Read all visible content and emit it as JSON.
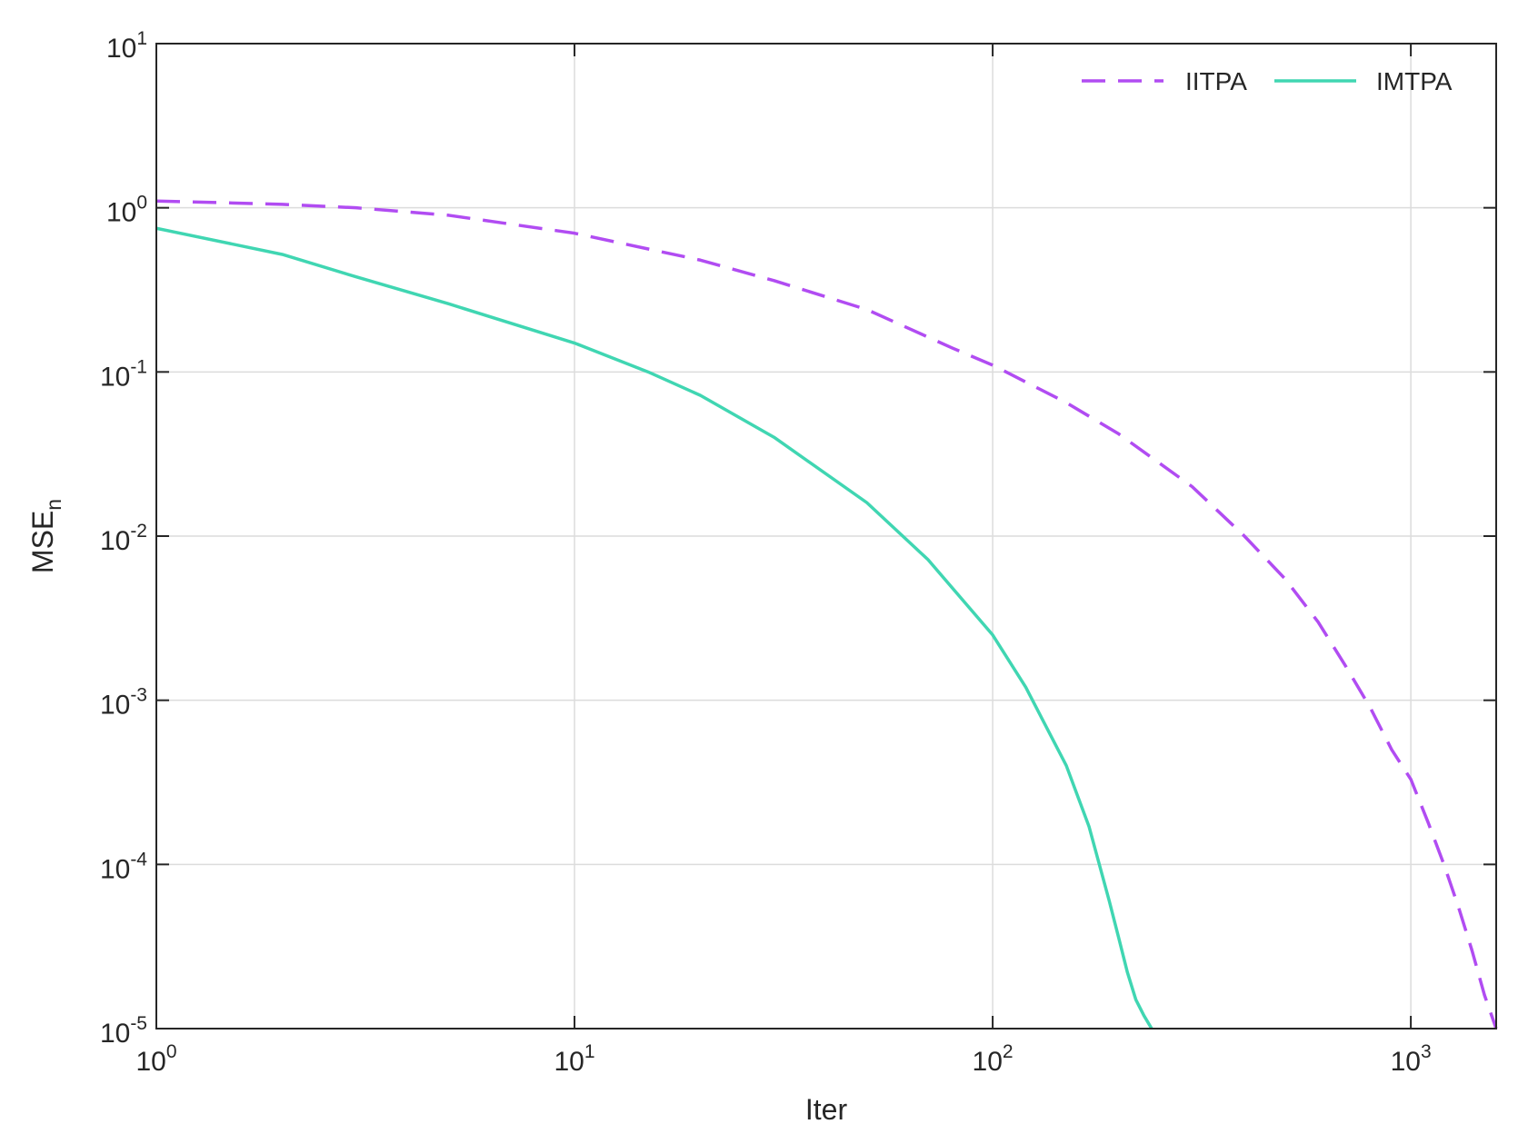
{
  "chart_data": {
    "type": "line",
    "xscale": "log",
    "yscale": "log",
    "xlim": [
      1,
      1600
    ],
    "ylim": [
      1e-05,
      10
    ],
    "xlabel": "Iter",
    "ylabel": "MSE",
    "ylabel_sub": "n",
    "grid": true,
    "legend_position": "top-right",
    "x_ticks": [
      {
        "value": 1,
        "base": "10",
        "exp": "0"
      },
      {
        "value": 10,
        "base": "10",
        "exp": "1"
      },
      {
        "value": 100,
        "base": "10",
        "exp": "2"
      },
      {
        "value": 1000,
        "base": "10",
        "exp": "3"
      }
    ],
    "y_ticks": [
      {
        "value": 10,
        "base": "10",
        "exp": "1"
      },
      {
        "value": 1,
        "base": "10",
        "exp": "0"
      },
      {
        "value": 0.1,
        "base": "10",
        "exp": "-1"
      },
      {
        "value": 0.01,
        "base": "10",
        "exp": "-2"
      },
      {
        "value": 0.001,
        "base": "10",
        "exp": "-3"
      },
      {
        "value": 0.0001,
        "base": "10",
        "exp": "-4"
      },
      {
        "value": 1e-05,
        "base": "10",
        "exp": "-5"
      }
    ],
    "series": [
      {
        "name": "IITPA",
        "color": "#b14cf2",
        "style": "dashed",
        "x": [
          1,
          2,
          3,
          5,
          10,
          20,
          30,
          50,
          80,
          100,
          150,
          200,
          300,
          400,
          500,
          600,
          700,
          800,
          900,
          1000,
          1100,
          1200,
          1300,
          1400,
          1500,
          1600
        ],
        "y": [
          1.1,
          1.05,
          1.0,
          0.9,
          0.7,
          0.48,
          0.36,
          0.24,
          0.14,
          0.11,
          0.065,
          0.042,
          0.02,
          0.01,
          0.0055,
          0.003,
          0.0016,
          0.0009,
          0.0005,
          0.00033,
          0.00018,
          0.0001,
          5.5e-05,
          3e-05,
          1.6e-05,
          1e-05
        ]
      },
      {
        "name": "IMTPA",
        "color": "#40d6b2",
        "style": "solid",
        "x": [
          1,
          2,
          3,
          5,
          10,
          15,
          20,
          30,
          50,
          70,
          100,
          120,
          150,
          170,
          190,
          200,
          210,
          220,
          230,
          240
        ],
        "y": [
          0.75,
          0.52,
          0.38,
          0.26,
          0.15,
          0.1,
          0.072,
          0.04,
          0.016,
          0.0072,
          0.0025,
          0.0012,
          0.0004,
          0.00017,
          6e-05,
          3.6e-05,
          2.2e-05,
          1.5e-05,
          1.2e-05,
          1e-05
        ]
      }
    ]
  }
}
